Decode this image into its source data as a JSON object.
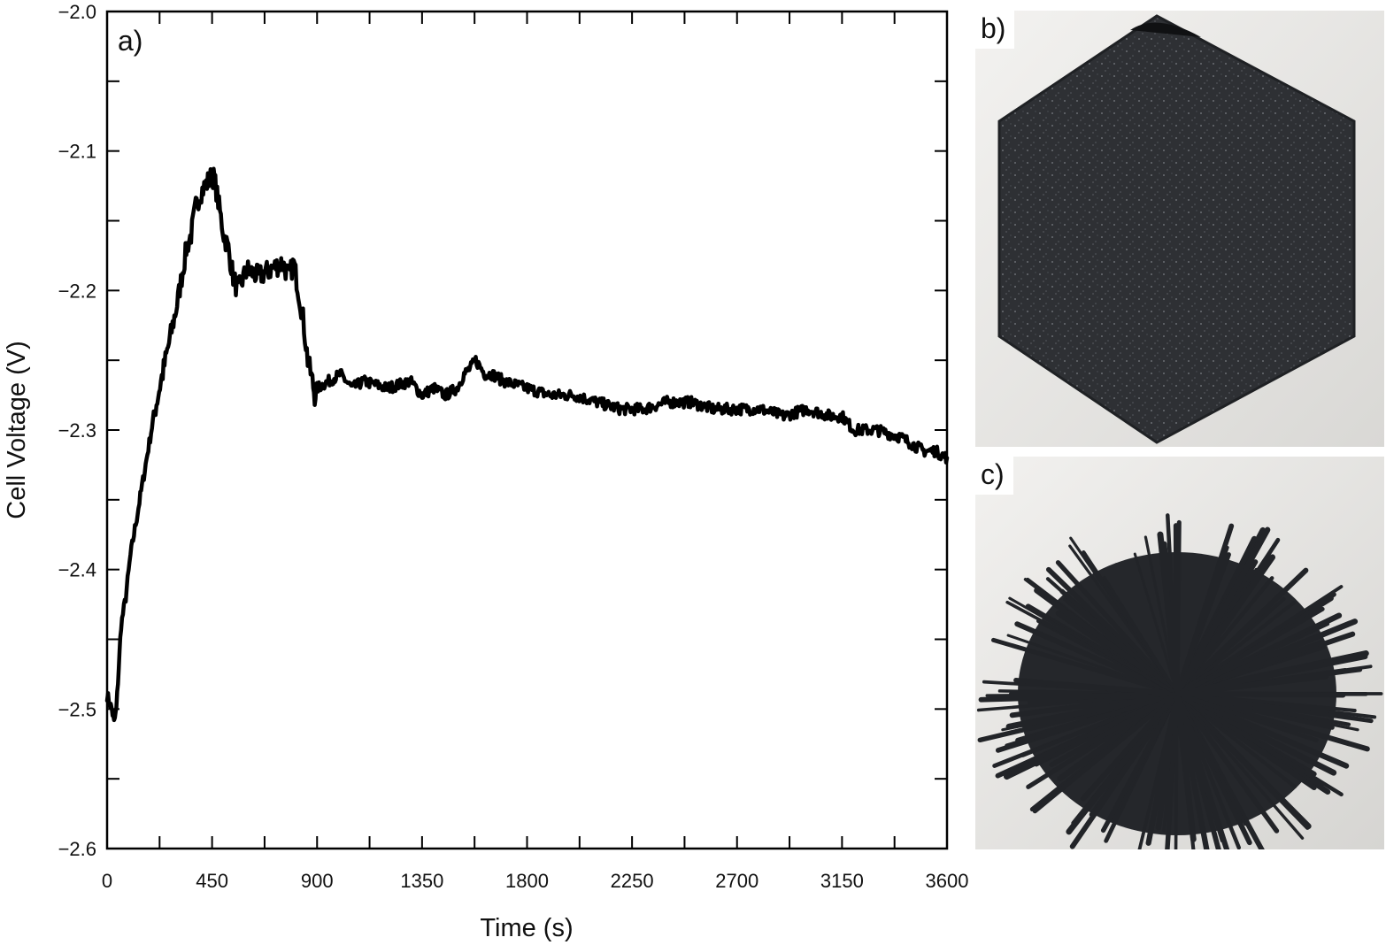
{
  "chart_data": {
    "type": "line",
    "panel_label": "a)",
    "xlabel": "Time (s)",
    "ylabel": "Cell Voltage (V)",
    "xlim": [
      0,
      3600
    ],
    "ylim": [
      -2.6,
      -2.0
    ],
    "xticks": [
      0,
      450,
      900,
      1350,
      1800,
      2250,
      2700,
      3150,
      3600
    ],
    "xtick_labels": [
      "0",
      "450",
      "900",
      "1350",
      "1800",
      "2250",
      "2700",
      "3150",
      "3600"
    ],
    "yticks": [
      -2.6,
      -2.5,
      -2.4,
      -2.3,
      -2.2,
      -2.1,
      -2.0
    ],
    "ytick_labels": [
      "−2.6",
      "−2.5",
      "−2.4",
      "−2.3",
      "−2.2",
      "−2.1",
      "−2.0"
    ],
    "grid": false,
    "series": [
      {
        "color": "#000000",
        "x": [
          0,
          20,
          30,
          40,
          50,
          60,
          80,
          100,
          150,
          200,
          250,
          300,
          320,
          340,
          360,
          380,
          400,
          420,
          440,
          450,
          460,
          480,
          500,
          520,
          540,
          560,
          600,
          650,
          700,
          750,
          780,
          800,
          820,
          840,
          860,
          880,
          890,
          900,
          950,
          1000,
          1050,
          1100,
          1200,
          1300,
          1350,
          1400,
          1450,
          1500,
          1530,
          1560,
          1580,
          1600,
          1620,
          1650,
          1700,
          1800,
          1900,
          2000,
          2100,
          2200,
          2300,
          2400,
          2500,
          2600,
          2700,
          2800,
          2900,
          3000,
          3100,
          3150,
          3200,
          3300,
          3400,
          3450,
          3500,
          3550,
          3600
        ],
        "y": [
          -2.49,
          -2.5,
          -2.51,
          -2.5,
          -2.47,
          -2.44,
          -2.42,
          -2.39,
          -2.34,
          -2.29,
          -2.25,
          -2.21,
          -2.19,
          -2.17,
          -2.16,
          -2.14,
          -2.13,
          -2.125,
          -2.12,
          -2.118,
          -2.12,
          -2.14,
          -2.16,
          -2.17,
          -2.19,
          -2.2,
          -2.185,
          -2.19,
          -2.185,
          -2.18,
          -2.19,
          -2.18,
          -2.2,
          -2.22,
          -2.25,
          -2.265,
          -2.275,
          -2.27,
          -2.265,
          -2.26,
          -2.27,
          -2.265,
          -2.27,
          -2.265,
          -2.275,
          -2.27,
          -2.275,
          -2.27,
          -2.26,
          -2.255,
          -2.25,
          -2.255,
          -2.26,
          -2.26,
          -2.265,
          -2.27,
          -2.275,
          -2.275,
          -2.28,
          -2.285,
          -2.285,
          -2.28,
          -2.28,
          -2.285,
          -2.285,
          -2.285,
          -2.29,
          -2.285,
          -2.29,
          -2.29,
          -2.3,
          -2.3,
          -2.305,
          -2.31,
          -2.315,
          -2.315,
          -2.32
        ]
      }
    ]
  },
  "photos": {
    "b": {
      "label": "b)"
    },
    "c": {
      "label": "c)"
    }
  }
}
